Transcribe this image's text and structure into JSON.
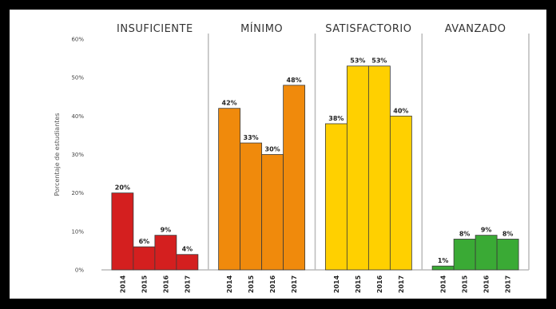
{
  "chart_data": {
    "type": "bar",
    "ylabel": "Porcentaje de estudiantes",
    "ylim": [
      0,
      60
    ],
    "yticks": [
      "0%",
      "10%",
      "20%",
      "30%",
      "40%",
      "50%",
      "60%"
    ],
    "categories": [
      "2014",
      "2015",
      "2016",
      "2017"
    ],
    "groups": [
      {
        "name": "INSUFICIENTE",
        "color": "#d41f1f",
        "values": [
          20,
          6,
          9,
          4
        ],
        "labels": [
          "20%",
          "6%",
          "9%",
          "4%"
        ]
      },
      {
        "name": "MÍNIMO",
        "color": "#f08a0c",
        "values": [
          42,
          33,
          30,
          48
        ],
        "labels": [
          "42%",
          "33%",
          "30%",
          "48%"
        ]
      },
      {
        "name": "SATISFACTORIO",
        "color": "#ffd000",
        "values": [
          38,
          53,
          53,
          40
        ],
        "labels": [
          "38%",
          "53%",
          "53%",
          "40%"
        ]
      },
      {
        "name": "AVANZADO",
        "color": "#3aaa35",
        "values": [
          1,
          8,
          9,
          8
        ],
        "labels": [
          "1%",
          "8%",
          "9%",
          "8%"
        ]
      }
    ],
    "grid": false,
    "legend": "none"
  }
}
